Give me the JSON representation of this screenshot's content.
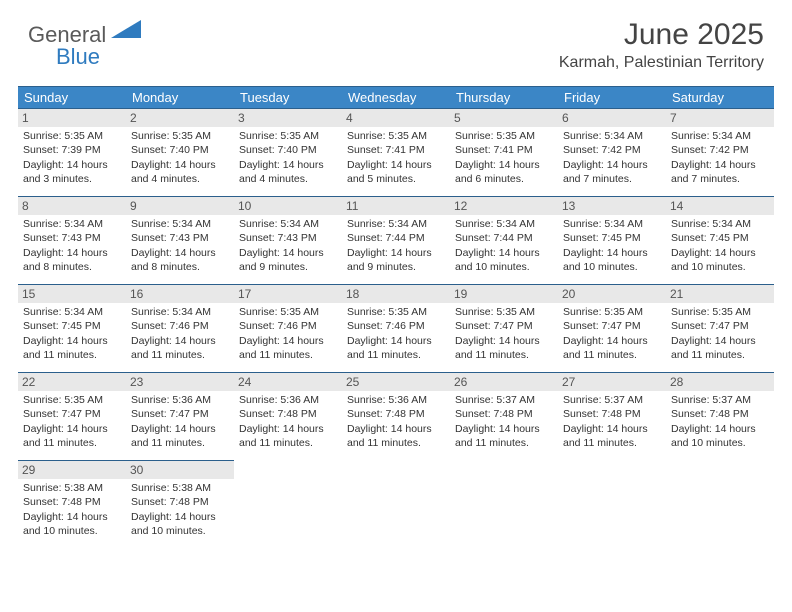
{
  "logo": {
    "general": "General",
    "blue": "Blue"
  },
  "colors": {
    "header_bg": "#3b86c6",
    "header_border": "#2b5f8c",
    "daynum_bg": "#e8e8e8",
    "text": "#333333",
    "logo_gray": "#5a5a5a",
    "logo_blue": "#2f7bbf"
  },
  "title": "June 2025",
  "location": "Karmah, Palestinian Territory",
  "weekdays": [
    "Sunday",
    "Monday",
    "Tuesday",
    "Wednesday",
    "Thursday",
    "Friday",
    "Saturday"
  ],
  "days": [
    {
      "n": 1,
      "sunrise": "5:35 AM",
      "sunset": "7:39 PM",
      "dl": "14 hours and 3 minutes."
    },
    {
      "n": 2,
      "sunrise": "5:35 AM",
      "sunset": "7:40 PM",
      "dl": "14 hours and 4 minutes."
    },
    {
      "n": 3,
      "sunrise": "5:35 AM",
      "sunset": "7:40 PM",
      "dl": "14 hours and 4 minutes."
    },
    {
      "n": 4,
      "sunrise": "5:35 AM",
      "sunset": "7:41 PM",
      "dl": "14 hours and 5 minutes."
    },
    {
      "n": 5,
      "sunrise": "5:35 AM",
      "sunset": "7:41 PM",
      "dl": "14 hours and 6 minutes."
    },
    {
      "n": 6,
      "sunrise": "5:34 AM",
      "sunset": "7:42 PM",
      "dl": "14 hours and 7 minutes."
    },
    {
      "n": 7,
      "sunrise": "5:34 AM",
      "sunset": "7:42 PM",
      "dl": "14 hours and 7 minutes."
    },
    {
      "n": 8,
      "sunrise": "5:34 AM",
      "sunset": "7:43 PM",
      "dl": "14 hours and 8 minutes."
    },
    {
      "n": 9,
      "sunrise": "5:34 AM",
      "sunset": "7:43 PM",
      "dl": "14 hours and 8 minutes."
    },
    {
      "n": 10,
      "sunrise": "5:34 AM",
      "sunset": "7:43 PM",
      "dl": "14 hours and 9 minutes."
    },
    {
      "n": 11,
      "sunrise": "5:34 AM",
      "sunset": "7:44 PM",
      "dl": "14 hours and 9 minutes."
    },
    {
      "n": 12,
      "sunrise": "5:34 AM",
      "sunset": "7:44 PM",
      "dl": "14 hours and 10 minutes."
    },
    {
      "n": 13,
      "sunrise": "5:34 AM",
      "sunset": "7:45 PM",
      "dl": "14 hours and 10 minutes."
    },
    {
      "n": 14,
      "sunrise": "5:34 AM",
      "sunset": "7:45 PM",
      "dl": "14 hours and 10 minutes."
    },
    {
      "n": 15,
      "sunrise": "5:34 AM",
      "sunset": "7:45 PM",
      "dl": "14 hours and 11 minutes."
    },
    {
      "n": 16,
      "sunrise": "5:34 AM",
      "sunset": "7:46 PM",
      "dl": "14 hours and 11 minutes."
    },
    {
      "n": 17,
      "sunrise": "5:35 AM",
      "sunset": "7:46 PM",
      "dl": "14 hours and 11 minutes."
    },
    {
      "n": 18,
      "sunrise": "5:35 AM",
      "sunset": "7:46 PM",
      "dl": "14 hours and 11 minutes."
    },
    {
      "n": 19,
      "sunrise": "5:35 AM",
      "sunset": "7:47 PM",
      "dl": "14 hours and 11 minutes."
    },
    {
      "n": 20,
      "sunrise": "5:35 AM",
      "sunset": "7:47 PM",
      "dl": "14 hours and 11 minutes."
    },
    {
      "n": 21,
      "sunrise": "5:35 AM",
      "sunset": "7:47 PM",
      "dl": "14 hours and 11 minutes."
    },
    {
      "n": 22,
      "sunrise": "5:35 AM",
      "sunset": "7:47 PM",
      "dl": "14 hours and 11 minutes."
    },
    {
      "n": 23,
      "sunrise": "5:36 AM",
      "sunset": "7:47 PM",
      "dl": "14 hours and 11 minutes."
    },
    {
      "n": 24,
      "sunrise": "5:36 AM",
      "sunset": "7:48 PM",
      "dl": "14 hours and 11 minutes."
    },
    {
      "n": 25,
      "sunrise": "5:36 AM",
      "sunset": "7:48 PM",
      "dl": "14 hours and 11 minutes."
    },
    {
      "n": 26,
      "sunrise": "5:37 AM",
      "sunset": "7:48 PM",
      "dl": "14 hours and 11 minutes."
    },
    {
      "n": 27,
      "sunrise": "5:37 AM",
      "sunset": "7:48 PM",
      "dl": "14 hours and 11 minutes."
    },
    {
      "n": 28,
      "sunrise": "5:37 AM",
      "sunset": "7:48 PM",
      "dl": "14 hours and 10 minutes."
    },
    {
      "n": 29,
      "sunrise": "5:38 AM",
      "sunset": "7:48 PM",
      "dl": "14 hours and 10 minutes."
    },
    {
      "n": 30,
      "sunrise": "5:38 AM",
      "sunset": "7:48 PM",
      "dl": "14 hours and 10 minutes."
    }
  ],
  "labels": {
    "sunrise": "Sunrise: ",
    "sunset": "Sunset: ",
    "daylight": "Daylight: "
  },
  "start_weekday": 0,
  "total_cells": 35
}
